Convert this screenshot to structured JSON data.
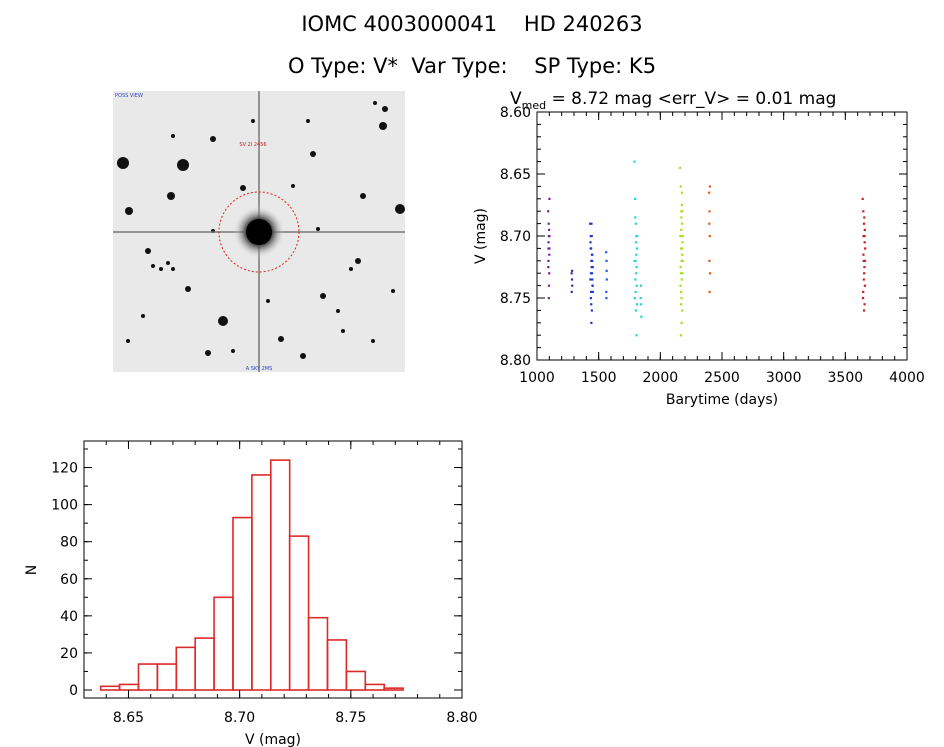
{
  "header": {
    "line1": "IOMC 4003000041    HD 240263",
    "line2": "O Type: V*  Var Type:    SP Type: K5"
  },
  "chart_data": [
    {
      "type": "scatter",
      "title_main": "V",
      "title_sub": "med",
      "title_rest": " = 8.72 mag <err_V> = 0.01 mag",
      "xlabel": "Barytime (days)",
      "ylabel": "V (mag)",
      "xlim": [
        1000,
        4000
      ],
      "ylim": [
        8.8,
        8.6
      ],
      "y_inverted": true,
      "xticks": [
        1000,
        1500,
        2000,
        2500,
        3000,
        3500,
        4000
      ],
      "yticks": [
        8.6,
        8.65,
        8.7,
        8.75,
        8.8
      ],
      "series": [
        {
          "color": "#7b1fa2",
          "points": [
            [
              1090,
              8.68
            ],
            [
              1095,
              8.7
            ],
            [
              1100,
              8.71
            ],
            [
              1092,
              8.72
            ],
            [
              1098,
              8.73
            ],
            [
              1094,
              8.69
            ],
            [
              1100,
              8.67
            ],
            [
              1096,
              8.74
            ],
            [
              1093,
              8.705
            ],
            [
              1099,
              8.715
            ],
            [
              1091,
              8.725
            ],
            [
              1097,
              8.695
            ],
            [
              1095,
              8.75
            ],
            [
              1100,
              8.7
            ],
            [
              1092,
              8.71
            ]
          ]
        },
        {
          "color": "#3a2ca0",
          "points": [
            [
              1280,
              8.73
            ],
            [
              1283,
              8.735
            ],
            [
              1285,
              8.74
            ],
            [
              1281,
              8.745
            ],
            [
              1284,
              8.728
            ]
          ]
        },
        {
          "color": "#1f3bd6",
          "points": [
            [
              1430,
              8.69
            ],
            [
              1435,
              8.7
            ],
            [
              1440,
              8.72
            ],
            [
              1445,
              8.73
            ],
            [
              1450,
              8.74
            ],
            [
              1438,
              8.71
            ],
            [
              1442,
              8.725
            ],
            [
              1447,
              8.715
            ],
            [
              1433,
              8.705
            ],
            [
              1452,
              8.745
            ],
            [
              1436,
              8.75
            ],
            [
              1444,
              8.76
            ],
            [
              1448,
              8.735
            ],
            [
              1441,
              8.69
            ],
            [
              1439,
              8.755
            ],
            [
              1446,
              8.72
            ],
            [
              1437,
              8.73
            ],
            [
              1434,
              8.71
            ],
            [
              1449,
              8.74
            ],
            [
              1443,
              8.7
            ],
            [
              1440,
              8.77
            ],
            [
              1451,
              8.725
            ],
            [
              1432,
              8.735
            ],
            [
              1445,
              8.715
            ],
            [
              1438,
              8.745
            ]
          ]
        },
        {
          "color": "#1a5fd0",
          "points": [
            [
              1560,
              8.713
            ],
            [
              1563,
              8.72
            ],
            [
              1565,
              8.735
            ],
            [
              1561,
              8.745
            ],
            [
              1564,
              8.728
            ],
            [
              1562,
              8.75
            ]
          ]
        },
        {
          "color": "#22d4d8",
          "points": [
            [
              1790,
              8.64
            ],
            [
              1795,
              8.67
            ],
            [
              1800,
              8.69
            ],
            [
              1805,
              8.7
            ],
            [
              1810,
              8.71
            ],
            [
              1798,
              8.72
            ],
            [
              1803,
              8.73
            ],
            [
              1808,
              8.74
            ],
            [
              1793,
              8.75
            ],
            [
              1801,
              8.76
            ],
            [
              1806,
              8.78
            ],
            [
              1796,
              8.685
            ],
            [
              1802,
              8.705
            ],
            [
              1807,
              8.725
            ],
            [
              1799,
              8.745
            ],
            [
              1804,
              8.715
            ],
            [
              1797,
              8.735
            ],
            [
              1812,
              8.7
            ],
            [
              1791,
              8.72
            ],
            [
              1809,
              8.755
            ],
            [
              1840,
              8.75
            ],
            [
              1845,
              8.765
            ],
            [
              1842,
              8.74
            ],
            [
              1843,
              8.755
            ]
          ]
        },
        {
          "color": "#a4e01c",
          "points": [
            [
              2160,
              8.645
            ],
            [
              2165,
              8.66
            ],
            [
              2170,
              8.68
            ],
            [
              2175,
              8.69
            ],
            [
              2180,
              8.7
            ],
            [
              2168,
              8.71
            ],
            [
              2172,
              8.72
            ],
            [
              2178,
              8.73
            ],
            [
              2163,
              8.74
            ],
            [
              2171,
              8.75
            ],
            [
              2176,
              8.76
            ],
            [
              2166,
              8.78
            ],
            [
              2174,
              8.675
            ],
            [
              2169,
              8.695
            ],
            [
              2177,
              8.715
            ],
            [
              2164,
              8.725
            ],
            [
              2173,
              8.735
            ],
            [
              2179,
              8.705
            ],
            [
              2162,
              8.7
            ],
            [
              2181,
              8.72
            ],
            [
              2167,
              8.745
            ],
            [
              2175,
              8.665
            ],
            [
              2170,
              8.685
            ],
            [
              2168,
              8.755
            ],
            [
              2172,
              8.77
            ],
            [
              2176,
              8.71
            ],
            [
              2166,
              8.73
            ],
            [
              2174,
              8.72
            ],
            [
              2178,
              8.68
            ],
            [
              2171,
              8.7
            ]
          ]
        },
        {
          "color": "#e65c14",
          "points": [
            [
              2395,
              8.665
            ],
            [
              2398,
              8.68
            ],
            [
              2400,
              8.7
            ],
            [
              2397,
              8.72
            ],
            [
              2402,
              8.73
            ],
            [
              2399,
              8.745
            ],
            [
              2401,
              8.66
            ],
            [
              2396,
              8.69
            ]
          ]
        },
        {
          "color": "#c62222",
          "points": [
            [
              3640,
              8.67
            ],
            [
              3645,
              8.68
            ],
            [
              3650,
              8.69
            ],
            [
              3655,
              8.7
            ],
            [
              3660,
              8.71
            ],
            [
              3648,
              8.72
            ],
            [
              3652,
              8.73
            ],
            [
              3658,
              8.74
            ],
            [
              3643,
              8.75
            ],
            [
              3651,
              8.76
            ],
            [
              3656,
              8.705
            ],
            [
              3646,
              8.715
            ],
            [
              3654,
              8.725
            ],
            [
              3649,
              8.735
            ],
            [
              3657,
              8.695
            ],
            [
              3644,
              8.745
            ],
            [
              3653,
              8.685
            ],
            [
              3659,
              8.72
            ],
            [
              3647,
              8.7
            ],
            [
              3655,
              8.755
            ]
          ]
        }
      ]
    },
    {
      "type": "bar",
      "subtype": "histogram",
      "xlabel": "V (mag)",
      "ylabel": "N",
      "xlim": [
        8.63,
        8.8
      ],
      "ylim": [
        0,
        130
      ],
      "xticks": [
        8.65,
        8.7,
        8.75,
        8.8
      ],
      "yticks": [
        0,
        20,
        40,
        60,
        80,
        100,
        120
      ],
      "bin_start": 8.6375,
      "bin_width": 0.0085,
      "values": [
        2,
        3,
        14,
        14,
        23,
        28,
        50,
        93,
        116,
        124,
        83,
        39,
        27,
        10,
        3,
        1
      ],
      "bar_color": "#dd2a2a"
    }
  ],
  "stamp": {
    "label_top": "SV 2I 2456",
    "label_bottom": "A SKY 2MS",
    "label_corner": "POSS VIEW"
  }
}
